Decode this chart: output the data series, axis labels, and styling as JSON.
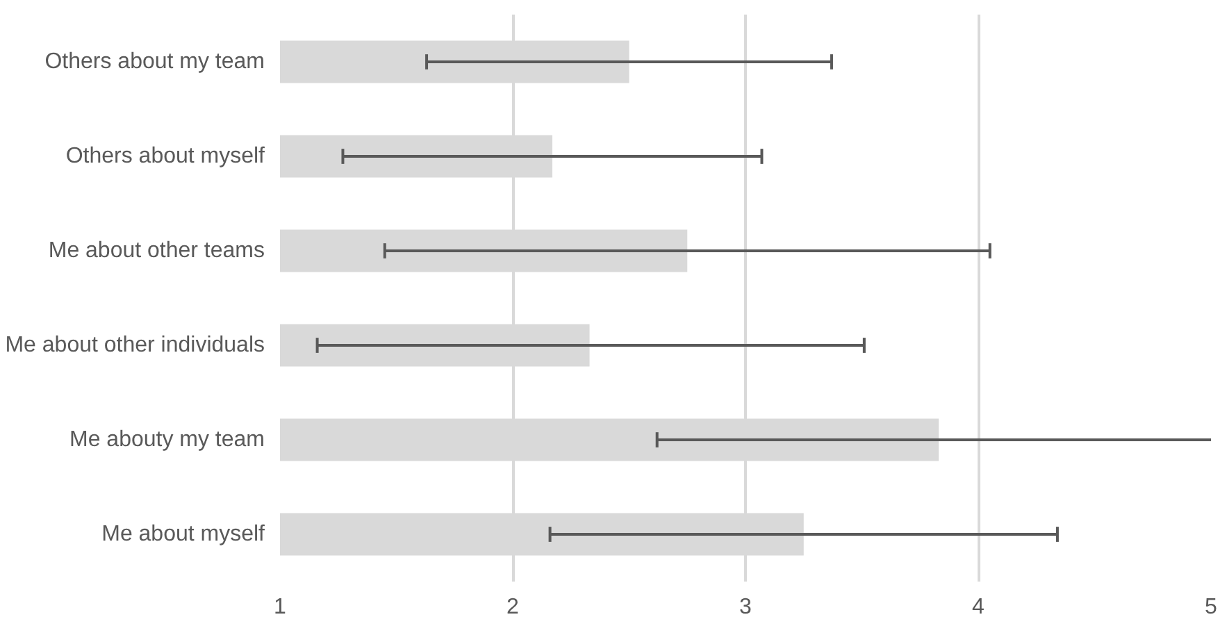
{
  "chart_data": {
    "type": "bar",
    "orientation": "horizontal",
    "categories": [
      "Others about my team",
      "Others about myself",
      "Me about other teams",
      "Me about other individuals",
      "Me abouty my team",
      "Me about myself"
    ],
    "values": [
      2.5,
      2.17,
      2.75,
      2.33,
      3.83,
      3.25
    ],
    "errors": [
      [
        1.63,
        3.37
      ],
      [
        1.27,
        3.07
      ],
      [
        1.45,
        4.05
      ],
      [
        1.16,
        3.51
      ],
      [
        2.62,
        5
      ],
      [
        2.16,
        4.34
      ]
    ],
    "color": "#d9d9d9",
    "xlim": [
      1,
      5
    ],
    "xticks": [
      1,
      2,
      3,
      4,
      5
    ],
    "grid": "x"
  }
}
